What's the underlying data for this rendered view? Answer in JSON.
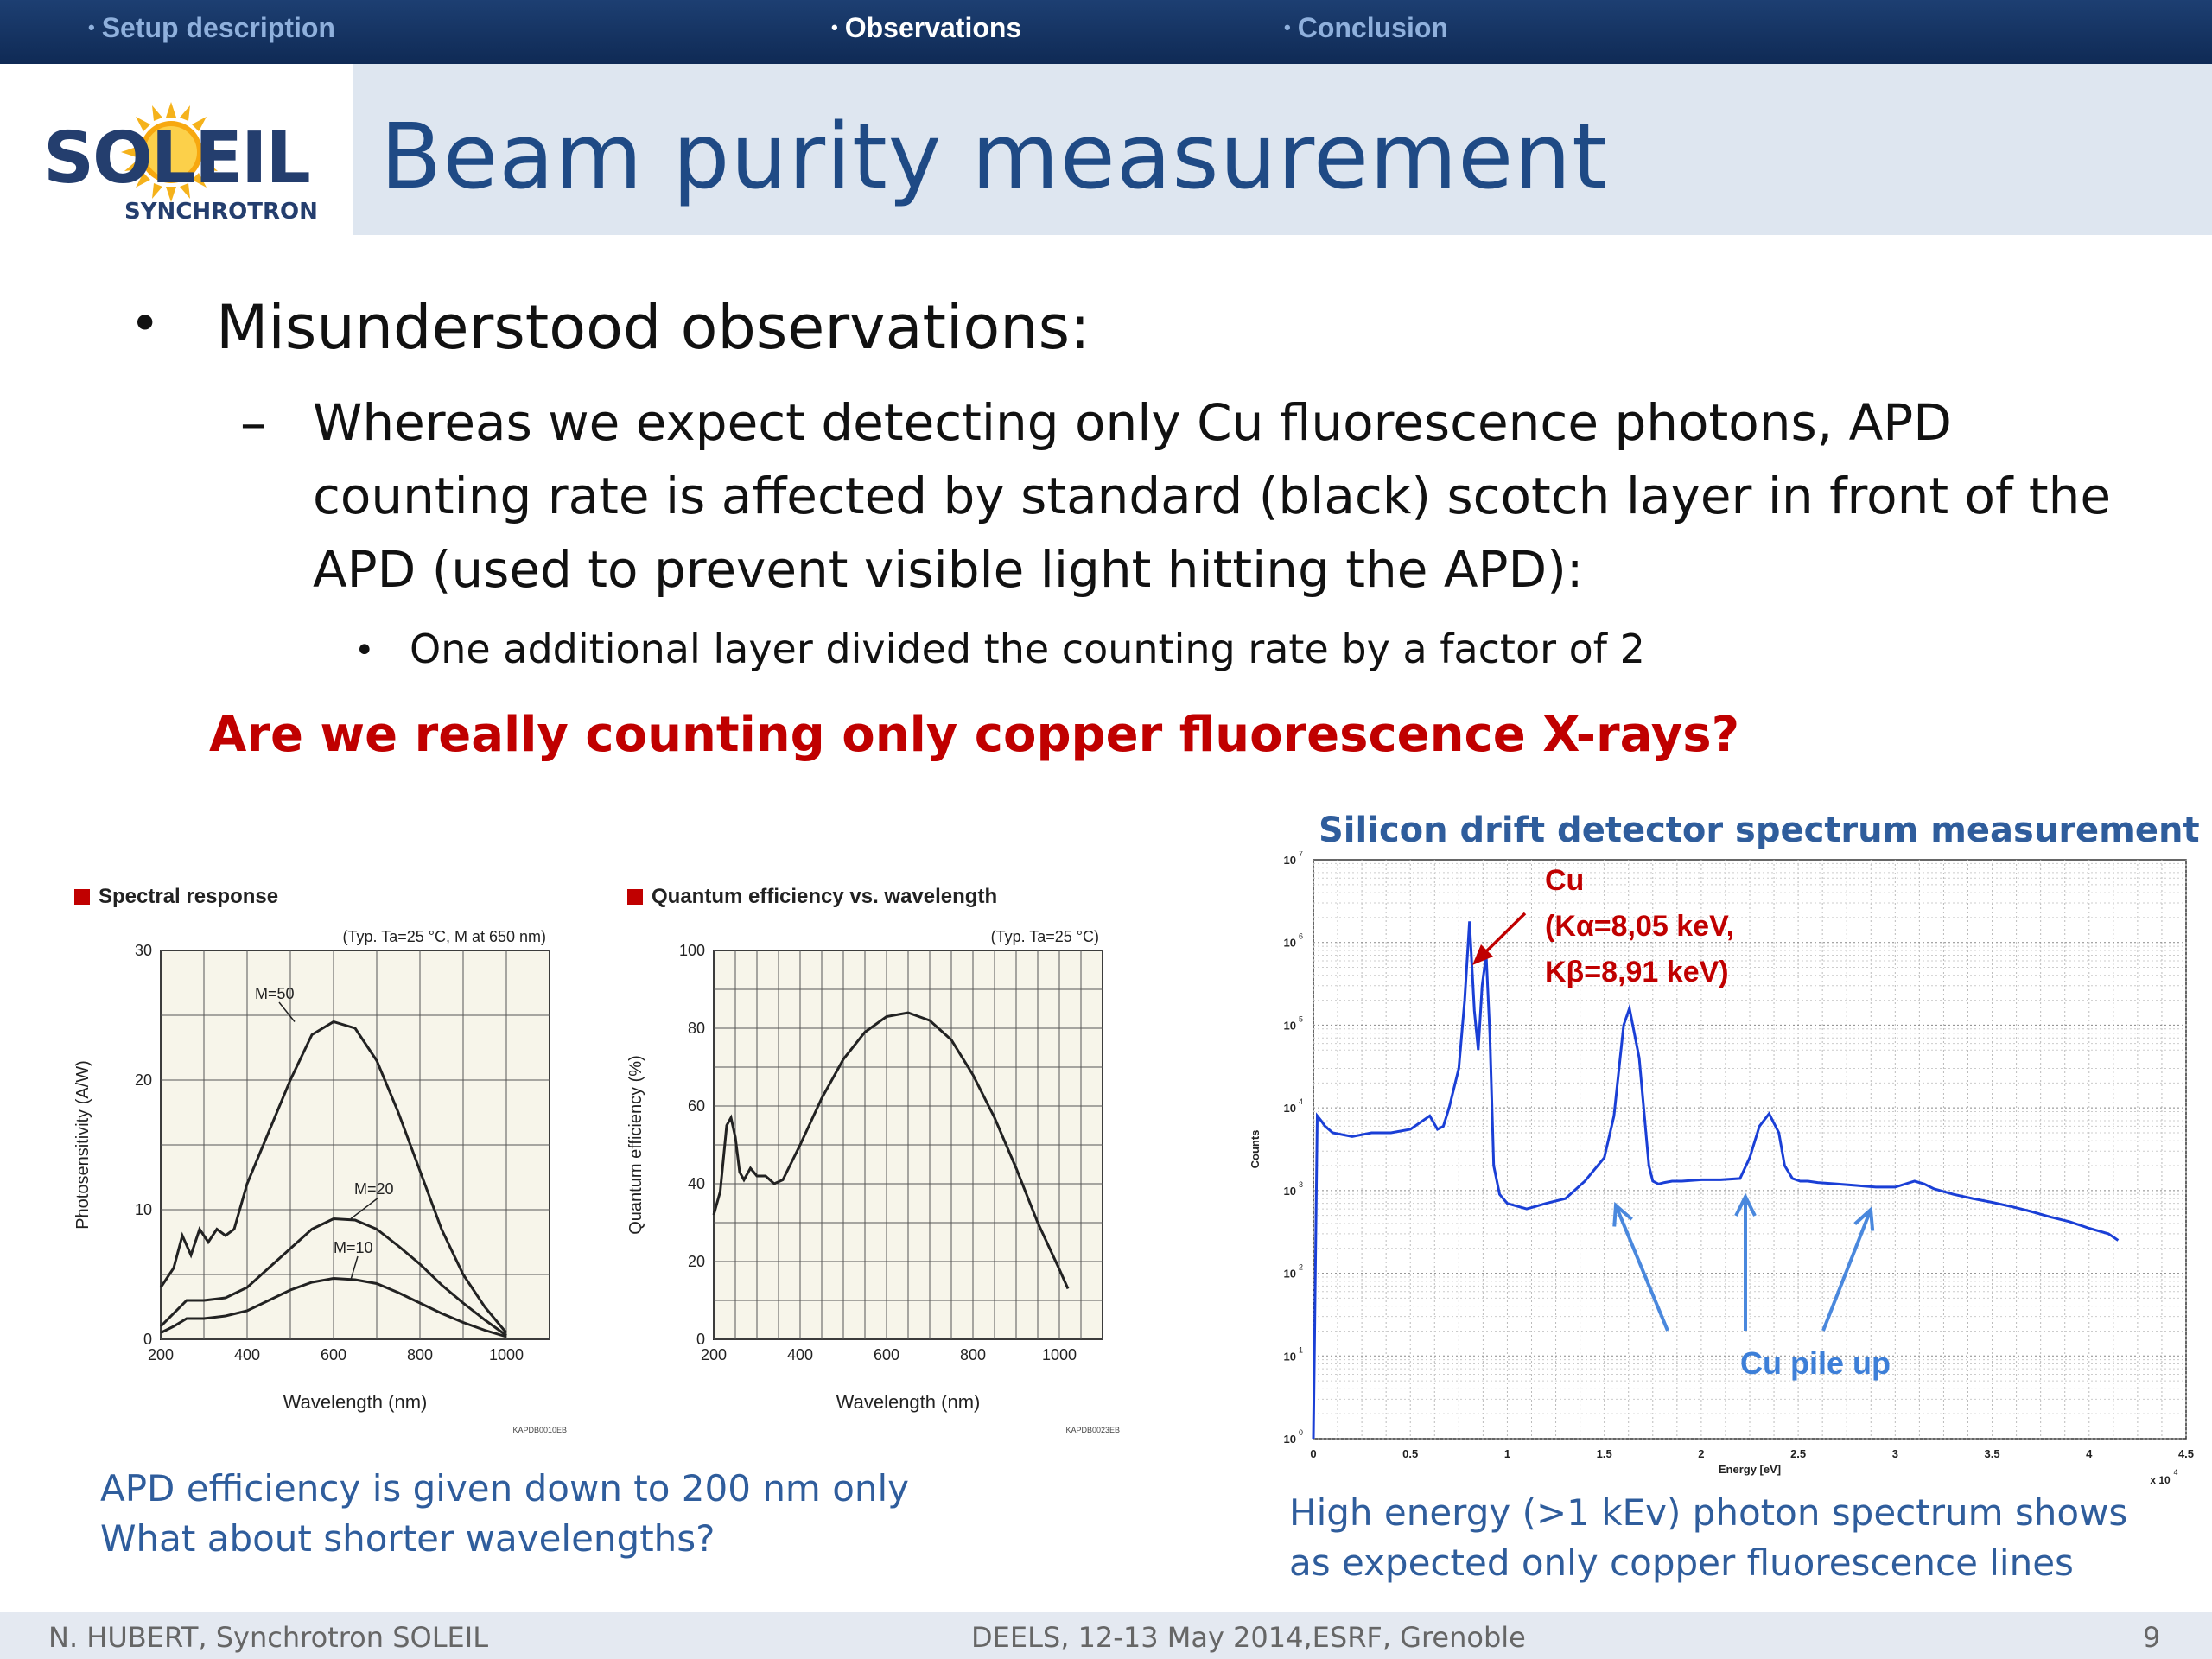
{
  "nav": {
    "items": [
      {
        "label": "Setup description",
        "active": false
      },
      {
        "label": "Observations",
        "active": true
      },
      {
        "label": "Conclusion",
        "active": false
      }
    ]
  },
  "header": {
    "title": "Beam purity measurement",
    "logo": {
      "word": "SOLEIL",
      "sub": "SYNCHROTRON"
    }
  },
  "content": {
    "bullet1": "Misunderstood observations:",
    "sub_lines": [
      "Whereas we  expect detecting only Cu fluorescence photons, APD",
      "counting rate is affected by standard (black) scotch layer in front of the",
      "APD (used to prevent visible light hitting the APD):"
    ],
    "sub_bullet": "One additional layer divided the counting rate by a factor of 2",
    "question": "Are we really counting only copper fluorescence X-rays?",
    "left_caption": [
      "APD efficiency is given down to 200 nm only",
      "What about shorter wavelengths?"
    ],
    "right_title": "Silicon drift detector spectrum measurement",
    "right_caption": [
      "High energy (>1 kEv) photon spectrum shows",
      "as expected only copper fluorescence lines"
    ]
  },
  "charts": {
    "spectral": {
      "title": "Spectral response",
      "note": "(Typ. Ta=25 °C, M at 650 nm)",
      "xlabel": "Wavelength (nm)",
      "ylabel": "Photosensitivity (A/W)",
      "code": "KAPDB0010EB"
    },
    "qe": {
      "title": "Quantum efficiency vs. wavelength",
      "note": "(Typ. Ta=25 °C)",
      "xlabel": "Wavelength (nm)",
      "ylabel": "Quantum efficiency (%)",
      "code": "KAPDB0023EB"
    },
    "sdd": {
      "xlabel": "Energy [eV]",
      "ylabel": "Counts",
      "x_multiplier": "x 10",
      "x_multiplier_exp": "4",
      "cu_annotation": [
        "Cu",
        "(Kα=8,05 keV,",
        "Kβ=8,91 keV)"
      ],
      "pileup_annotation": "Cu pile up"
    }
  },
  "chart_data": [
    {
      "type": "line",
      "title": "Spectral response",
      "xlabel": "Wavelength (nm)",
      "ylabel": "Photosensitivity (A/W)",
      "xlim": [
        200,
        1100
      ],
      "ylim": [
        0,
        30
      ],
      "xticks": [
        200,
        400,
        600,
        800,
        1000
      ],
      "yticks": [
        0,
        10,
        20,
        30
      ],
      "grid": true,
      "series": [
        {
          "name": "M=50",
          "x": [
            200,
            230,
            250,
            270,
            290,
            310,
            330,
            350,
            370,
            400,
            450,
            500,
            550,
            600,
            650,
            700,
            750,
            800,
            850,
            900,
            950,
            1000
          ],
          "y": [
            4,
            5.5,
            8,
            6.5,
            8.5,
            7.5,
            8.5,
            8,
            8.5,
            12,
            16,
            20,
            23.5,
            24.5,
            24,
            21.5,
            17.5,
            13,
            8.5,
            5,
            2.5,
            0.5
          ]
        },
        {
          "name": "M=20",
          "x": [
            200,
            230,
            260,
            300,
            350,
            400,
            450,
            500,
            550,
            600,
            650,
            700,
            750,
            800,
            850,
            900,
            950,
            1000
          ],
          "y": [
            1,
            2,
            3,
            3,
            3.2,
            4,
            5.5,
            7,
            8.5,
            9.3,
            9.2,
            8.5,
            7.2,
            5.8,
            4.2,
            2.8,
            1.5,
            0.3
          ]
        },
        {
          "name": "M=10",
          "x": [
            200,
            230,
            260,
            300,
            350,
            400,
            450,
            500,
            550,
            600,
            650,
            700,
            750,
            800,
            850,
            900,
            950,
            1000
          ],
          "y": [
            0.5,
            1,
            1.6,
            1.6,
            1.8,
            2.2,
            3,
            3.8,
            4.4,
            4.7,
            4.6,
            4.3,
            3.6,
            2.8,
            2,
            1.3,
            0.7,
            0.2
          ]
        }
      ]
    },
    {
      "type": "line",
      "title": "Quantum efficiency vs. wavelength",
      "xlabel": "Wavelength (nm)",
      "ylabel": "Quantum efficiency (%)",
      "xlim": [
        200,
        1100
      ],
      "ylim": [
        0,
        100
      ],
      "xticks": [
        200,
        400,
        600,
        800,
        1000
      ],
      "yticks": [
        0,
        20,
        40,
        60,
        80,
        100
      ],
      "grid": true,
      "series": [
        {
          "name": "",
          "x": [
            200,
            215,
            230,
            240,
            250,
            260,
            270,
            285,
            300,
            320,
            340,
            360,
            400,
            450,
            500,
            550,
            600,
            650,
            700,
            750,
            800,
            850,
            900,
            950,
            1000,
            1020
          ],
          "y": [
            32,
            38,
            55,
            57,
            52,
            43,
            41,
            44,
            42,
            42,
            40,
            41,
            50,
            62,
            72,
            79,
            83,
            84,
            82,
            77,
            68,
            57,
            44,
            30,
            18,
            13
          ]
        }
      ]
    },
    {
      "type": "line",
      "title": "Silicon drift detector spectrum measurement",
      "xlabel": "Energy [eV]",
      "ylabel": "Counts",
      "xlim": [
        0,
        45000
      ],
      "ylim": [
        1,
        10000000
      ],
      "yscale": "log",
      "xticks": [
        0,
        5000,
        10000,
        15000,
        20000,
        25000,
        30000,
        35000,
        40000,
        45000
      ],
      "xtick_labels": [
        "0",
        "0.5",
        "1",
        "1.5",
        "2",
        "2.5",
        "3",
        "3.5",
        "4",
        "4.5"
      ],
      "ytick_exponents": [
        0,
        1,
        2,
        3,
        4,
        5,
        6,
        7
      ],
      "grid": true,
      "series": [
        {
          "name": "",
          "x": [
            0,
            200,
            400,
            600,
            1000,
            2000,
            3000,
            4000,
            5000,
            6000,
            6400,
            6700,
            7000,
            7500,
            7800,
            8050,
            8300,
            8500,
            8700,
            8910,
            9100,
            9300,
            9600,
            10000,
            11000,
            12000,
            13000,
            14000,
            15000,
            15500,
            16000,
            16300,
            16800,
            17300,
            17500,
            17800,
            18100,
            18500,
            19000,
            20000,
            21000,
            22000,
            22500,
            23000,
            23500,
            24000,
            24300,
            24700,
            25100,
            25500,
            26000,
            27000,
            28000,
            29000,
            30000,
            31000,
            31500,
            32000,
            33000,
            34000,
            35000,
            36000,
            37000,
            38000,
            39000,
            40000,
            41000,
            41500
          ],
          "y": [
            1,
            8000,
            7000,
            6000,
            5000,
            4500,
            5000,
            5000,
            5500,
            8000,
            5500,
            6000,
            10000,
            30000,
            200000,
            1800000,
            150000,
            50000,
            300000,
            700000,
            80000,
            2000,
            900,
            700,
            600,
            700,
            800,
            1300,
            2500,
            8000,
            100000,
            160000,
            40000,
            2000,
            1300,
            1200,
            1250,
            1300,
            1300,
            1350,
            1350,
            1400,
            2500,
            6000,
            8500,
            5000,
            2000,
            1400,
            1300,
            1300,
            1250,
            1200,
            1150,
            1100,
            1100,
            1300,
            1200,
            1050,
            900,
            800,
            720,
            640,
            560,
            480,
            420,
            350,
            300,
            250
          ]
        }
      ]
    }
  ],
  "footer": {
    "author": "N. HUBERT, Synchrotron SOLEIL",
    "event": "DEELS, 12-13 May 2014,ESRF, Grenoble",
    "page": "9"
  }
}
